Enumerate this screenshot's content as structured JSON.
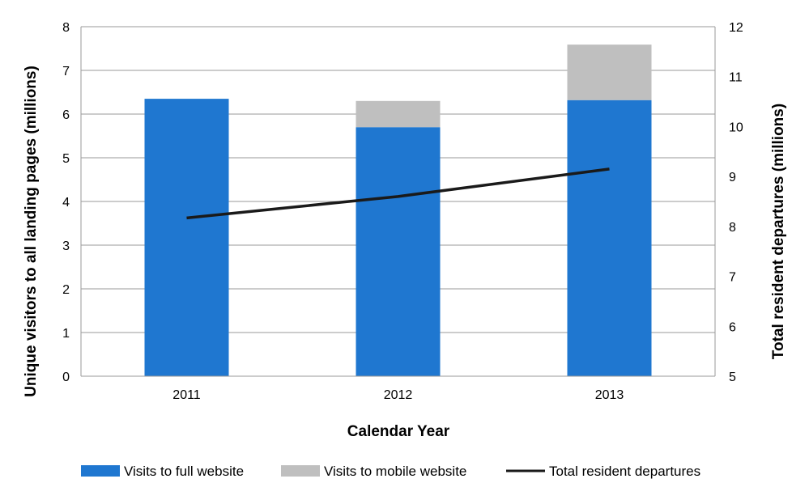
{
  "chart_data": {
    "type": "bar",
    "stacked": true,
    "categories": [
      "2011",
      "2012",
      "2013"
    ],
    "xlabel": "Calendar Year",
    "ylabel": "Unique visitors to all landing pages (millions)",
    "ylabel_right": "Total resident departures (millions)",
    "ylim": [
      0,
      8
    ],
    "ylim_right": [
      5,
      12
    ],
    "yticks": [
      "0",
      "1",
      "2",
      "3",
      "4",
      "5",
      "6",
      "7",
      "8"
    ],
    "yticks_right": [
      "5",
      "6",
      "7",
      "8",
      "9",
      "10",
      "11",
      "12"
    ],
    "series": [
      {
        "name": "Visits to full website",
        "type": "bar",
        "axis": "left",
        "color": "#1f77d0",
        "values": [
          6.35,
          5.7,
          6.32
        ]
      },
      {
        "name": "Visits to mobile website",
        "type": "bar",
        "axis": "left",
        "color": "#bfbfbf",
        "values": [
          0.0,
          0.6,
          1.27
        ]
      },
      {
        "name": "Total resident departures",
        "type": "line",
        "axis": "right",
        "color": "#1a1a1a",
        "values": [
          8.17,
          8.6,
          9.15
        ]
      }
    ],
    "grid": true,
    "legend_position": "bottom"
  }
}
